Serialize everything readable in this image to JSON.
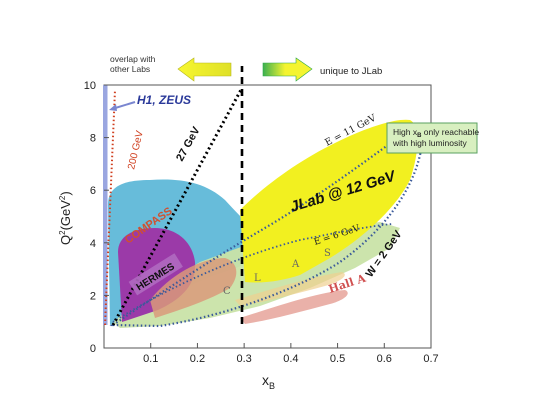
{
  "chart_data": {
    "type": "area",
    "xlabel": "x",
    "xlabel_sub": "B",
    "ylabel": "Q",
    "ylabel_sup": "2",
    "ylabel_unit": "(GeV",
    "ylabel_unit_sup": "2",
    "ylabel_close": ")",
    "xlim": [
      0,
      0.7
    ],
    "ylim": [
      0,
      10
    ],
    "x_ticks": [
      "0.1",
      "0.2",
      "0.3",
      "0.4",
      "0.5",
      "0.6",
      "0.7"
    ],
    "y_ticks": [
      "0",
      "2",
      "4",
      "6",
      "8",
      "10"
    ],
    "x_tick_values": [
      0.1,
      0.2,
      0.3,
      0.4,
      0.5,
      0.6,
      0.7
    ],
    "y_tick_values": [
      0,
      2,
      4,
      6,
      8,
      10
    ],
    "regions": [
      {
        "name": "H1, ZEUS",
        "color": "#9aa6e0"
      },
      {
        "name": "COMPASS",
        "color": "#5fb8d8"
      },
      {
        "name": "HERMES",
        "color": "#9b3aa8"
      },
      {
        "name": "JLab @ 12 GeV",
        "color": "#f2f020"
      },
      {
        "name": "C L A S",
        "color": "#c9e3a8"
      },
      {
        "name": "Hall A",
        "color": "#e8a8a0"
      }
    ],
    "lines": [
      {
        "name": "200 GeV",
        "color": "#d04020",
        "style": "dotted",
        "points": [
          [
            0.003,
            1.0
          ],
          [
            0.025,
            9.2
          ]
        ]
      },
      {
        "name": "27 GeV",
        "color": "#000000",
        "style": "dotted",
        "points": [
          [
            0.02,
            1.0
          ],
          [
            0.3,
            9.9
          ]
        ]
      },
      {
        "name": "E = 11 GeV",
        "color": "#3a5a9a",
        "style": "dotted"
      },
      {
        "name": "E = 6 GeV",
        "color": "#3a5a9a",
        "style": "dotted"
      },
      {
        "name": "W = 2 GeV",
        "color": "#3a5a9a",
        "style": "dotted"
      },
      {
        "name": "x = 0.3",
        "color": "#000000",
        "style": "dashed",
        "points": [
          [
            0.3,
            0.9
          ],
          [
            0.3,
            10.2
          ]
        ]
      }
    ],
    "annotations": {
      "overlap_line1": "overlap with",
      "overlap_line2": "other Labs",
      "unique": "unique to JLab",
      "h1zeus": "H1, ZEUS",
      "gev200": "200 GeV",
      "gev27": "27 GeV",
      "compass": "COMPASS",
      "hermes": "HERMES",
      "jlab": "JLab @ 12 GeV",
      "e11": "E = 11 GeV",
      "e6": "E = 6 GeV",
      "w2": "W = 2 GeV",
      "clas": [
        "C",
        "L",
        "A",
        "S"
      ],
      "halla": "Hall A",
      "note_line1_a": "High x",
      "note_line1_sub": "B",
      "note_line1_b": " only reachable",
      "note_line2": "with high luminosity"
    },
    "colors": {
      "arrow_fill": "#f0f020",
      "arrow_left_edge": "#2ea84a",
      "arrow_right_edge": "#2ea84a",
      "note_box": "#d8efc0",
      "note_border": "#5aa060"
    }
  }
}
